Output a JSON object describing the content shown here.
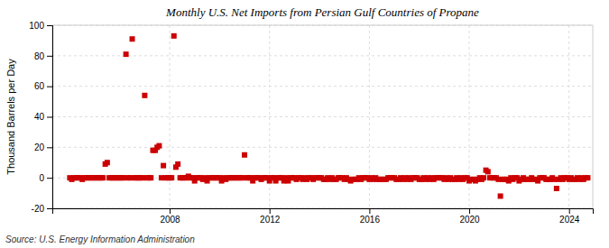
{
  "chart_data": {
    "type": "scatter",
    "title": "Monthly U.S. Net Imports from Persian Gulf Countries of Propane",
    "ylabel": "Thousand Barrels per Day",
    "source": "Source: U.S. Energy Information Administration",
    "color": "#CC0000",
    "marker": "square",
    "grid": true,
    "xlim": [
      2003.3,
      2024.95
    ],
    "xticks": [
      2008,
      2012,
      2016,
      2020,
      2024
    ],
    "ylim": [
      -20,
      100
    ],
    "yticks": [
      -20,
      0,
      20,
      40,
      60,
      80,
      100
    ],
    "x": [
      2004.0,
      2004.08,
      2004.17,
      2004.25,
      2004.33,
      2004.42,
      2004.5,
      2004.58,
      2004.67,
      2004.75,
      2004.83,
      2004.92,
      2005.0,
      2005.08,
      2005.17,
      2005.25,
      2005.33,
      2005.42,
      2005.5,
      2005.58,
      2005.67,
      2005.75,
      2005.83,
      2005.92,
      2006.0,
      2006.08,
      2006.17,
      2006.25,
      2006.33,
      2006.42,
      2006.5,
      2006.58,
      2006.67,
      2006.75,
      2006.83,
      2006.92,
      2007.0,
      2007.08,
      2007.17,
      2007.25,
      2007.33,
      2007.42,
      2007.5,
      2007.58,
      2007.67,
      2007.75,
      2007.83,
      2007.92,
      2008.0,
      2008.08,
      2008.17,
      2008.25,
      2008.33,
      2008.42,
      2008.5,
      2008.58,
      2008.67,
      2008.75,
      2008.83,
      2008.92,
      2009.0,
      2009.08,
      2009.17,
      2009.25,
      2009.33,
      2009.42,
      2009.5,
      2009.58,
      2009.67,
      2009.75,
      2009.83,
      2009.92,
      2010.0,
      2010.08,
      2010.17,
      2010.25,
      2010.33,
      2010.42,
      2010.5,
      2010.58,
      2010.67,
      2010.75,
      2010.83,
      2010.92,
      2011.0,
      2011.08,
      2011.17,
      2011.25,
      2011.33,
      2011.42,
      2011.5,
      2011.58,
      2011.67,
      2011.75,
      2011.83,
      2011.92,
      2012.0,
      2012.08,
      2012.17,
      2012.25,
      2012.33,
      2012.42,
      2012.5,
      2012.58,
      2012.67,
      2012.75,
      2012.83,
      2012.92,
      2013.0,
      2013.08,
      2013.17,
      2013.25,
      2013.33,
      2013.42,
      2013.5,
      2013.58,
      2013.67,
      2013.75,
      2013.83,
      2013.92,
      2014.0,
      2014.08,
      2014.17,
      2014.25,
      2014.33,
      2014.42,
      2014.5,
      2014.58,
      2014.67,
      2014.75,
      2014.83,
      2014.92,
      2015.0,
      2015.08,
      2015.17,
      2015.25,
      2015.33,
      2015.42,
      2015.5,
      2015.58,
      2015.67,
      2015.75,
      2015.83,
      2015.92,
      2016.0,
      2016.08,
      2016.17,
      2016.25,
      2016.33,
      2016.42,
      2016.5,
      2016.58,
      2016.67,
      2016.75,
      2016.83,
      2016.92,
      2017.0,
      2017.08,
      2017.17,
      2017.25,
      2017.33,
      2017.42,
      2017.5,
      2017.58,
      2017.67,
      2017.75,
      2017.83,
      2017.92,
      2018.0,
      2018.08,
      2018.17,
      2018.25,
      2018.33,
      2018.42,
      2018.5,
      2018.58,
      2018.67,
      2018.75,
      2018.83,
      2018.92,
      2019.0,
      2019.08,
      2019.17,
      2019.25,
      2019.33,
      2019.42,
      2019.5,
      2019.58,
      2019.67,
      2019.75,
      2019.83,
      2019.92,
      2020.0,
      2020.08,
      2020.17,
      2020.25,
      2020.33,
      2020.42,
      2020.5,
      2020.58,
      2020.67,
      2020.75,
      2020.83,
      2020.92,
      2021.0,
      2021.08,
      2021.17,
      2021.25,
      2021.33,
      2021.42,
      2021.5,
      2021.58,
      2021.67,
      2021.75,
      2021.83,
      2021.92,
      2022.0,
      2022.08,
      2022.17,
      2022.25,
      2022.33,
      2022.42,
      2022.5,
      2022.58,
      2022.67,
      2022.75,
      2022.83,
      2022.92,
      2023.0,
      2023.08,
      2023.17,
      2023.25,
      2023.33,
      2023.42,
      2023.5,
      2023.58,
      2023.67,
      2023.75,
      2023.83,
      2023.92,
      2024.0,
      2024.08,
      2024.17,
      2024.25,
      2024.33,
      2024.42,
      2024.5,
      2024.58,
      2024.67,
      2024.75
    ],
    "values": [
      0,
      -1,
      0,
      0,
      0,
      0,
      -1,
      0,
      0,
      0,
      0,
      0,
      0,
      0,
      0,
      0,
      0,
      9,
      10,
      0,
      0,
      0,
      0,
      0,
      0,
      0,
      0,
      81,
      0,
      0,
      91,
      0,
      0,
      0,
      0,
      0,
      54,
      0,
      0,
      0,
      18,
      18,
      20,
      21,
      0,
      8,
      0,
      0,
      0,
      0,
      93,
      7,
      9,
      0,
      0,
      0,
      0,
      1,
      0,
      0,
      -2,
      0,
      0,
      0,
      -1,
      0,
      -2,
      0,
      0,
      0,
      0,
      0,
      0,
      -2,
      0,
      -1,
      0,
      0,
      0,
      0,
      0,
      0,
      0,
      0,
      15,
      0,
      0,
      0,
      -2,
      0,
      0,
      0,
      -1,
      0,
      0,
      0,
      -2,
      0,
      0,
      -2,
      0,
      0,
      0,
      -2,
      0,
      -2,
      0,
      0,
      0,
      -1,
      0,
      0,
      -1,
      0,
      -1,
      0,
      0,
      -1,
      0,
      0,
      0,
      0,
      -1,
      -1,
      0,
      -1,
      0,
      -1,
      -1,
      0,
      0,
      0,
      -1,
      0,
      -1,
      -2,
      -1,
      -1,
      -1,
      0,
      -1,
      0,
      0,
      0,
      -1,
      0,
      -1,
      0,
      -1,
      -1,
      -1,
      -1,
      -1,
      0,
      0,
      0,
      0,
      -1,
      -1,
      0,
      -1,
      0,
      -1,
      0,
      -1,
      0,
      0,
      0,
      -1,
      -1,
      0,
      -1,
      0,
      -1,
      0,
      -1,
      0,
      0,
      0,
      0,
      -1,
      0,
      -1,
      0,
      -1,
      -1,
      0,
      -1,
      0,
      -1,
      0,
      0,
      -2,
      -1,
      -1,
      -2,
      -1,
      0,
      -1,
      0,
      5,
      4,
      0,
      0,
      0,
      0,
      -1,
      -12,
      -1,
      -1,
      -1,
      -2,
      0,
      -1,
      0,
      0,
      -2,
      -1,
      0,
      -1,
      -1,
      -1,
      0,
      -1,
      -1,
      -2,
      0,
      0,
      0,
      -1,
      -1,
      -1,
      0,
      -1,
      -7,
      -1,
      0,
      -1,
      0,
      0,
      -1,
      0,
      -1,
      -1,
      0,
      -1,
      0,
      -1,
      0,
      0
    ]
  }
}
